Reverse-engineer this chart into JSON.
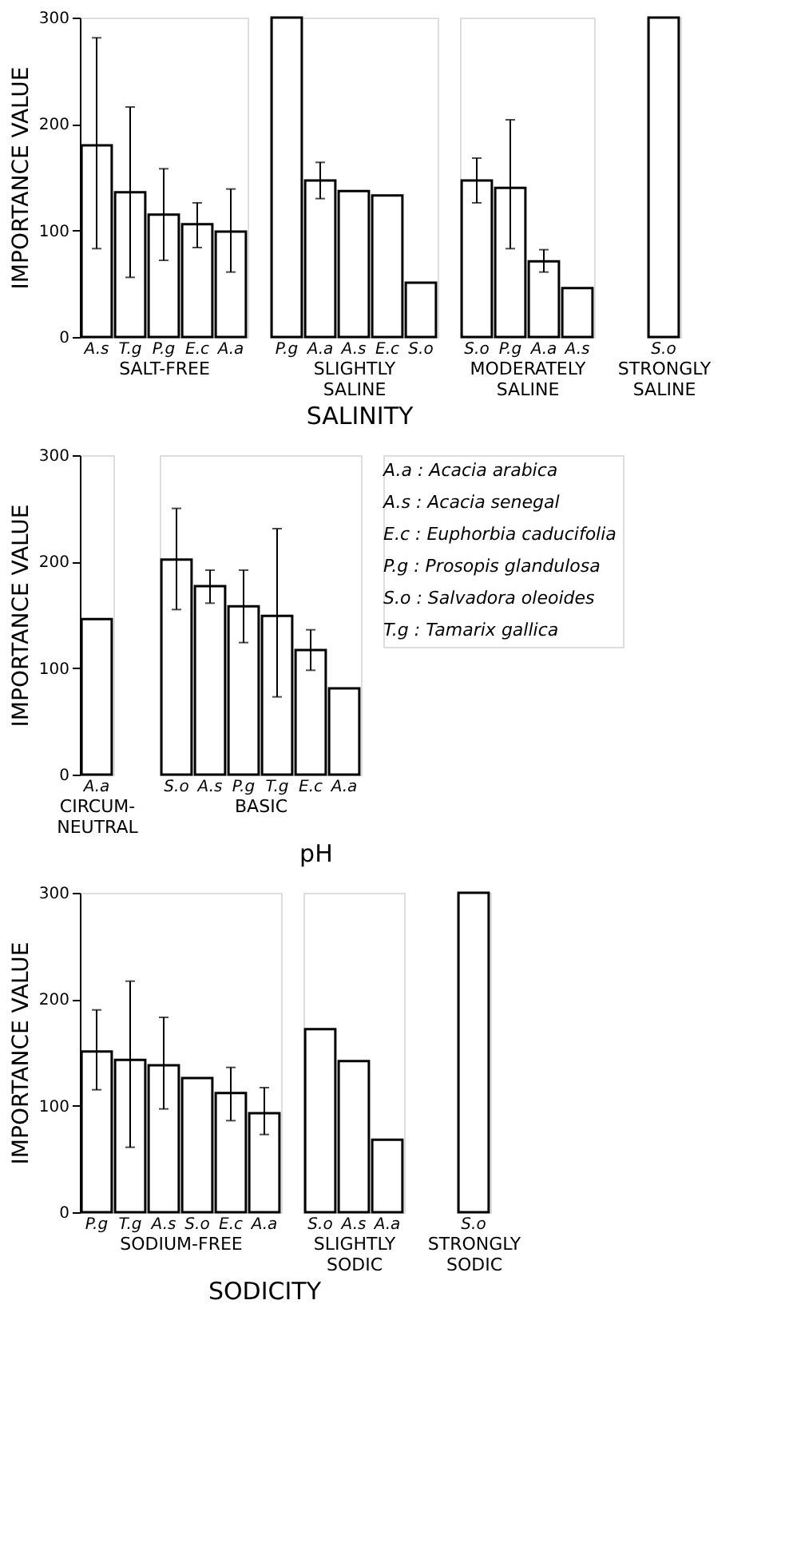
{
  "chart_data": [
    {
      "type": "bar",
      "ylabel": "IMPORTANCE VALUE",
      "xlabel": "SALT-FREE",
      "annotations": [
        "SALINITY"
      ],
      "categories": [
        "A.s",
        "T.g",
        "P.g",
        "E.c",
        "A.a"
      ],
      "values": [
        180,
        136,
        115,
        106,
        99
      ],
      "errors": [
        [
          83,
          281
        ],
        [
          56,
          216
        ],
        [
          72,
          158
        ],
        [
          84,
          126
        ],
        [
          61,
          139
        ]
      ],
      "color": "#ffffff",
      "ylim": [
        0,
        300
      ],
      "yticks": [
        0,
        100,
        200,
        300
      ]
    },
    {
      "type": "bar",
      "xlabel": "SLIGHTLY\nSALINE",
      "categories": [
        "P.g",
        "A.a",
        "A.s",
        "E.c",
        "S.o"
      ],
      "values": [
        300,
        147,
        137,
        133,
        51
      ],
      "errors": [
        null,
        [
          130,
          164
        ],
        null,
        null,
        null
      ],
      "color": "#ffffff",
      "ylim": [
        0,
        300
      ],
      "tick_labels": "x"
    },
    {
      "type": "bar",
      "xlabel": "MODERATELY\nSALINE",
      "categories": [
        "S.o",
        "P.g",
        "A.a",
        "A.s"
      ],
      "values": [
        147,
        140,
        71,
        46
      ],
      "errors": [
        [
          126,
          168
        ],
        [
          83,
          204
        ],
        [
          61,
          82
        ],
        null
      ],
      "color": "#ffffff",
      "ylim": [
        0,
        300
      ],
      "tick_labels": "x"
    },
    {
      "type": "bar",
      "xlabel": "STRONGLY\nSALINE",
      "categories": [
        "S.o"
      ],
      "values": [
        300
      ],
      "color": "#ffffff",
      "ylim": [
        0,
        300
      ],
      "tick_labels": "x"
    },
    {
      "type": "bar",
      "ylabel": "IMPORTANCE VALUE",
      "xlabel": "CIRCUM-\nNEUTRAL",
      "annotations": [
        "pH"
      ],
      "categories": [
        "A.a"
      ],
      "values": [
        146
      ],
      "color": "#ffffff",
      "ylim": [
        0,
        300
      ],
      "yticks": [
        0,
        100,
        200,
        300
      ]
    },
    {
      "type": "bar",
      "xlabel": "BASIC",
      "annotations": [
        "A.a : Acacia arabica",
        "A.s : Acacia senegal",
        "E.c : Euphorbia caducifolia",
        "P.g : Prosopis glandulosa",
        "S.o : Salvadora oleoides",
        "T.g : Tamarix gallica"
      ],
      "categories": [
        "S.o",
        "A.s",
        "P.g",
        "T.g",
        "E.c",
        "A.a"
      ],
      "values": [
        202,
        177,
        158,
        149,
        117,
        81
      ],
      "errors": [
        [
          155,
          250
        ],
        [
          161,
          192
        ],
        [
          124,
          192
        ],
        [
          73,
          231
        ],
        [
          98,
          136
        ],
        null
      ],
      "color": "#ffffff",
      "ylim": [
        0,
        300
      ],
      "tick_labels": "x"
    },
    {
      "type": "bar",
      "ylabel": "IMPORTANCE VALUE",
      "xlabel": "SODIUM-FREE",
      "annotations": [
        "SODICITY"
      ],
      "categories": [
        "P.g",
        "T.g",
        "A.s",
        "S.o",
        "E.c",
        "A.a"
      ],
      "values": [
        151,
        143,
        138,
        126,
        112,
        93
      ],
      "errors": [
        [
          115,
          190
        ],
        [
          61,
          217
        ],
        [
          97,
          183
        ],
        null,
        [
          86,
          136
        ],
        [
          73,
          117
        ]
      ],
      "color": "#ffffff",
      "ylim": [
        0,
        300
      ],
      "yticks": [
        0,
        100,
        200,
        300
      ]
    },
    {
      "type": "bar",
      "xlabel": "SLIGHTLY\nSODIC",
      "categories": [
        "S.o",
        "A.s",
        "A.a"
      ],
      "values": [
        172,
        142,
        68
      ],
      "color": "#ffffff",
      "ylim": [
        0,
        300
      ],
      "tick_labels": "x"
    },
    {
      "type": "bar",
      "xlabel": "STRONGLY\nSODIC",
      "categories": [
        "S.o"
      ],
      "values": [
        300
      ],
      "color": "#ffffff",
      "ylim": [
        0,
        300
      ],
      "tick_labels": "x"
    }
  ]
}
